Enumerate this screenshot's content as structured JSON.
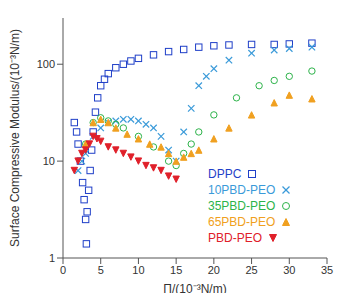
{
  "chart_data": {
    "type": "scatter",
    "x_label": "Π/(10⁻³N/m)",
    "y_label": "Surface Compressive Modulus/(10⁻³N/m)",
    "xlim": [
      0,
      35
    ],
    "ylim": [
      1,
      300
    ],
    "xticks": [
      0,
      5,
      10,
      15,
      20,
      25,
      30,
      35
    ],
    "yticks": [
      1,
      10,
      100
    ],
    "log": "y",
    "legend": "lower right",
    "series": [
      {
        "name": "DPPC",
        "color": "#1f3fc8",
        "marker": "square",
        "x": [
          1.5,
          1.8,
          2.0,
          2.3,
          2.6,
          2.8,
          3.0,
          3.1,
          3.2,
          3.4,
          3.6,
          3.8,
          4.0,
          4.3,
          4.6,
          5.0,
          5.5,
          6.0,
          7.0,
          8.0,
          9.0,
          10.0,
          12.0,
          14.0,
          16.0,
          18.0,
          20.0,
          22.0,
          25.0,
          28.0,
          30.0,
          33.0
        ],
        "values": [
          25,
          20,
          15,
          10,
          6,
          4,
          2.5,
          1.4,
          3,
          5,
          8,
          13,
          20,
          32,
          45,
          60,
          70,
          80,
          92,
          100,
          108,
          115,
          125,
          135,
          142,
          150,
          155,
          158,
          160,
          160,
          162,
          165
        ]
      },
      {
        "name": "10PBD-PEO",
        "color": "#3a9ad9",
        "marker": "x",
        "x": [
          2.0,
          2.5,
          3.0,
          4.0,
          5.0,
          6.0,
          7.0,
          8.0,
          9.0,
          10.0,
          11.0,
          12.0,
          13.0,
          14.0,
          15.0,
          16.0,
          17.0,
          18.0,
          19.0,
          20.0,
          22.0,
          25.0,
          28.0,
          30.0,
          33.0
        ],
        "values": [
          8,
          10,
          12,
          18,
          22,
          25,
          26,
          27,
          27,
          26,
          24,
          22,
          18,
          13,
          10,
          20,
          35,
          60,
          75,
          90,
          110,
          130,
          140,
          145,
          150
        ]
      },
      {
        "name": "35PBD-PEO",
        "color": "#2db34a",
        "marker": "circle",
        "x": [
          3.0,
          4.0,
          5.0,
          6.0,
          7.0,
          8.0,
          10.0,
          12.0,
          14.0,
          15.0,
          16.0,
          17.0,
          18.0,
          20.0,
          23.0,
          26.0,
          28.0,
          30.0,
          33.0
        ],
        "values": [
          15,
          25,
          28,
          26,
          24,
          22,
          18,
          14,
          10,
          9,
          12,
          15,
          20,
          30,
          45,
          60,
          68,
          75,
          85
        ]
      },
      {
        "name": "65PBD-PEO",
        "color": "#f0a020",
        "marker": "triangle",
        "x": [
          3.0,
          4.0,
          5.0,
          6.0,
          7.0,
          8.5,
          10.0,
          11.5,
          13.0,
          14.0,
          15.0,
          16.0,
          17.0,
          18.0,
          20.0,
          22.0,
          25.0,
          28.0,
          30.0,
          33.0
        ],
        "values": [
          15,
          25,
          27,
          25,
          22,
          19,
          17,
          15,
          14,
          12,
          10,
          11,
          12,
          13,
          17,
          22,
          30,
          40,
          48,
          44
        ]
      },
      {
        "name": "PBD-PEO",
        "color": "#e0202a",
        "marker": "triangle-down",
        "x": [
          1.5,
          2.0,
          2.5,
          3.0,
          3.5,
          4.0,
          4.5,
          5.0,
          6.0,
          7.0,
          8.0,
          9.0,
          10.0,
          11.0,
          12.0,
          13.0,
          14.0,
          15.0
        ],
        "values": [
          8,
          10,
          12,
          13,
          15,
          18,
          17,
          16,
          14,
          13,
          12,
          11,
          10,
          9,
          8.5,
          8,
          7,
          6.5
        ]
      }
    ]
  }
}
